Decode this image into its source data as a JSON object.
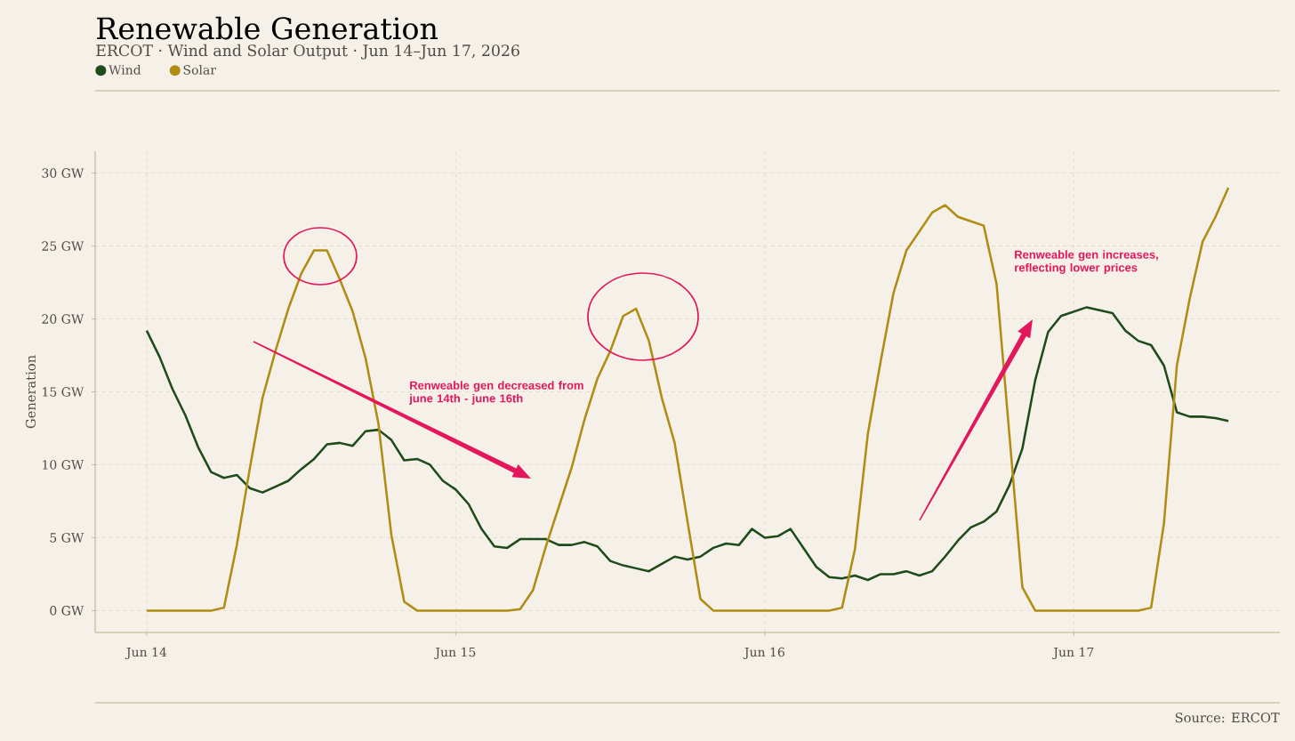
{
  "chart_data": {
    "type": "line",
    "title": "Renewable Generation",
    "subtitle": "ERCOT · Wind and Solar Output · Jun 14–Jun 17, 2026",
    "ylabel": "Generation",
    "annotations": [
      "Renweable gen decreased from june 14th - june 16th",
      "Renweable gen increases, reflecting lower prices",
      "Source: ERCOT"
    ],
    "x": [
      "2026-06-14T00:00",
      "2026-06-14T01:00",
      "2026-06-14T02:00",
      "2026-06-14T03:00",
      "2026-06-14T04:00",
      "2026-06-14T05:00",
      "2026-06-14T06:00",
      "2026-06-14T07:00",
      "2026-06-14T08:00",
      "2026-06-14T09:00",
      "2026-06-14T10:00",
      "2026-06-14T11:00",
      "2026-06-14T12:00",
      "2026-06-14T13:00",
      "2026-06-14T14:00",
      "2026-06-14T15:00",
      "2026-06-14T16:00",
      "2026-06-14T17:00",
      "2026-06-14T18:00",
      "2026-06-14T19:00",
      "2026-06-14T20:00",
      "2026-06-14T21:00",
      "2026-06-14T22:00",
      "2026-06-14T23:00",
      "2026-06-15T00:00",
      "2026-06-15T01:00",
      "2026-06-15T02:00",
      "2026-06-15T03:00",
      "2026-06-15T04:00",
      "2026-06-15T05:00",
      "2026-06-15T06:00",
      "2026-06-15T07:00",
      "2026-06-15T08:00",
      "2026-06-15T09:00",
      "2026-06-15T10:00",
      "2026-06-15T11:00",
      "2026-06-15T12:00",
      "2026-06-15T13:00",
      "2026-06-15T14:00",
      "2026-06-15T15:00",
      "2026-06-15T16:00",
      "2026-06-15T17:00",
      "2026-06-15T18:00",
      "2026-06-15T19:00",
      "2026-06-15T20:00",
      "2026-06-15T21:00",
      "2026-06-15T22:00",
      "2026-06-15T23:00",
      "2026-06-16T00:00",
      "2026-06-16T01:00",
      "2026-06-16T02:00",
      "2026-06-16T03:00",
      "2026-06-16T04:00",
      "2026-06-16T05:00",
      "2026-06-16T06:00",
      "2026-06-16T07:00",
      "2026-06-16T08:00",
      "2026-06-16T09:00",
      "2026-06-16T10:00",
      "2026-06-16T11:00",
      "2026-06-16T12:00",
      "2026-06-16T13:00",
      "2026-06-16T14:00",
      "2026-06-16T15:00",
      "2026-06-16T16:00",
      "2026-06-16T17:00",
      "2026-06-16T18:00",
      "2026-06-16T19:00",
      "2026-06-16T20:00",
      "2026-06-16T21:00",
      "2026-06-16T22:00",
      "2026-06-16T23:00",
      "2026-06-17T00:00",
      "2026-06-17T01:00",
      "2026-06-17T02:00",
      "2026-06-17T03:00",
      "2026-06-17T04:00",
      "2026-06-17T05:00",
      "2026-06-17T06:00",
      "2026-06-17T07:00",
      "2026-06-17T08:00",
      "2026-06-17T09:00",
      "2026-06-17T10:00",
      "2026-06-17T11:00",
      "2026-06-17T12:00"
    ],
    "series": [
      {
        "name": "Wind",
        "color": "#1f4a1c",
        "values": [
          19.2,
          17.4,
          15.2,
          13.4,
          11.2,
          9.5,
          9.1,
          9.3,
          8.4,
          8.1,
          8.5,
          8.9,
          9.7,
          10.4,
          11.4,
          11.5,
          11.3,
          12.3,
          12.4,
          11.7,
          10.3,
          10.4,
          10.0,
          8.9,
          8.3,
          7.3,
          5.6,
          4.4,
          4.3,
          4.9,
          4.9,
          4.9,
          4.5,
          4.5,
          4.7,
          4.4,
          3.4,
          3.1,
          2.9,
          2.7,
          3.2,
          3.7,
          3.5,
          3.7,
          4.3,
          4.6,
          4.5,
          5.6,
          5.0,
          5.1,
          5.6,
          4.3,
          3.0,
          2.3,
          2.2,
          2.4,
          2.1,
          2.5,
          2.5,
          2.7,
          2.4,
          2.7,
          3.7,
          4.8,
          5.7,
          6.1,
          6.8,
          8.6,
          11.1,
          15.8,
          19.1,
          20.2,
          20.5,
          20.8,
          20.6,
          20.4,
          19.2,
          18.5,
          18.2,
          16.8,
          13.6,
          13.3,
          13.3,
          13.2,
          13.0
        ]
      },
      {
        "name": "Solar",
        "color": "#b08d12",
        "values": [
          0,
          0,
          0,
          0,
          0,
          0,
          0.2,
          4.5,
          9.7,
          14.6,
          17.8,
          20.7,
          23.1,
          24.7,
          24.7,
          22.7,
          20.5,
          17.3,
          12.8,
          5.2,
          0.6,
          0,
          0,
          0,
          0,
          0,
          0,
          0,
          0,
          0.1,
          1.4,
          4.4,
          7.1,
          9.8,
          13.1,
          15.9,
          17.8,
          20.2,
          20.7,
          18.5,
          14.6,
          11.5,
          6.1,
          0.8,
          0,
          0,
          0,
          0,
          0,
          0,
          0,
          0,
          0,
          0,
          0.2,
          4.2,
          12.1,
          17.1,
          21.8,
          24.7,
          26.0,
          27.3,
          27.8,
          27.0,
          26.7,
          26.4,
          22.4,
          12.0,
          1.6,
          0,
          0,
          0,
          0,
          0,
          0,
          0,
          0,
          0,
          0.2,
          6.0,
          16.8,
          21.4,
          25.3,
          27.0,
          29.0
        ]
      }
    ],
    "xlim": [
      "2026-06-13T20:00",
      "2026-06-17T16:00"
    ],
    "ylim": [
      -1.5,
      31.5
    ],
    "xticks": [
      {
        "value": "2026-06-14",
        "label": "Jun 14"
      },
      {
        "value": "2026-06-15",
        "label": "Jun 15"
      },
      {
        "value": "2026-06-16",
        "label": "Jun 16"
      },
      {
        "value": "2026-06-17",
        "label": "Jun 17"
      }
    ],
    "yticks": [
      {
        "value": 0,
        "label": "0 GW"
      },
      {
        "value": 5,
        "label": "5 GW"
      },
      {
        "value": 10,
        "label": "10 GW"
      },
      {
        "value": 15,
        "label": "15 GW"
      },
      {
        "value": 20,
        "label": "20 GW"
      },
      {
        "value": 25,
        "label": "25 GW"
      },
      {
        "value": 30,
        "label": "30 GW"
      }
    ],
    "grid": true,
    "legend": "top left"
  }
}
